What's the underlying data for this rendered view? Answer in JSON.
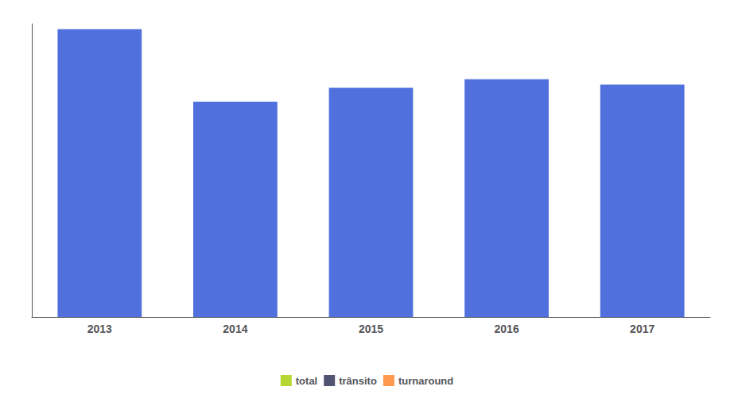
{
  "chart_data": {
    "type": "bar",
    "categories": [
      "2013",
      "2014",
      "2015",
      "2016",
      "2017"
    ],
    "values": [
      270000,
      202000,
      215000,
      223000,
      218000
    ],
    "ylim": [
      0,
      275000
    ],
    "grid": false,
    "tick_labels": "x",
    "legend": "bottom",
    "legend_labels": [
      "total",
      "trânsito",
      "turnaround"
    ]
  }
}
